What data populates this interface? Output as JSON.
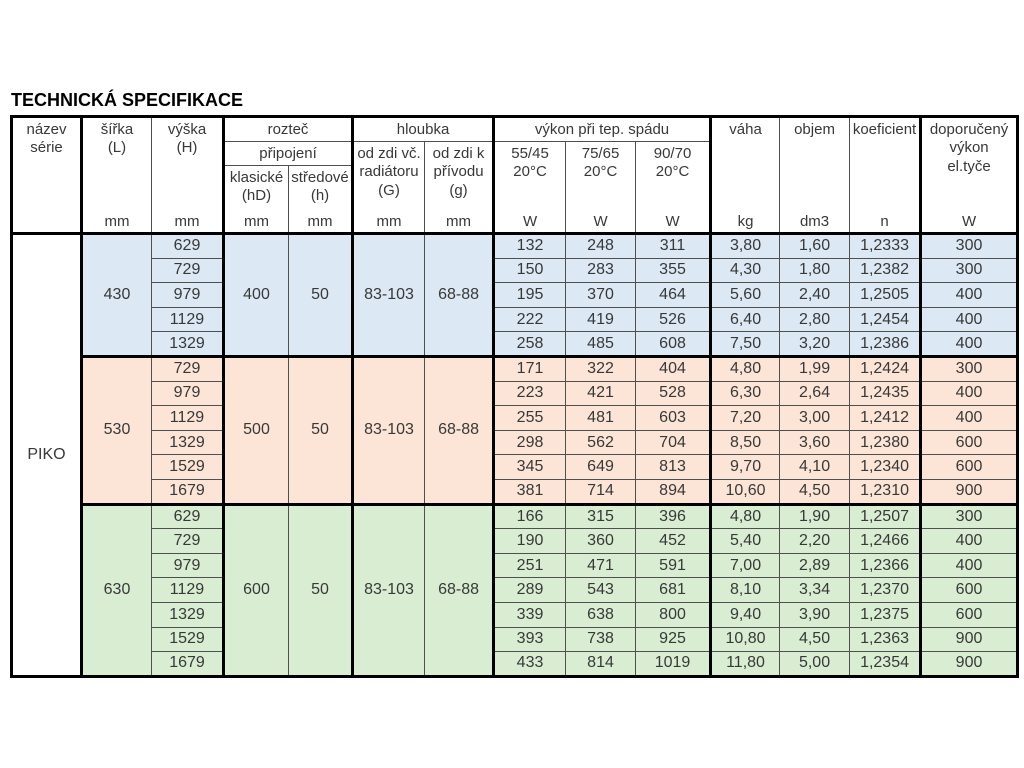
{
  "title": "TECHNICKÁ SPECIFIKACE",
  "series_name": "PIKO",
  "header": {
    "nazev_serie": "název\nsérie",
    "sirka": "šířka\n(L)",
    "vyska": "výška\n(H)",
    "roztec": "rozteč",
    "pripojeni": "připojení",
    "klasicke": "klasické\n(hD)",
    "stredove": "středové\n(h)",
    "hloubka": "hloubka",
    "od_zdi_vc": "od zdi vč.\nradiátoru\n(G)",
    "od_zdi_k": "od zdi k\npřívodu\n(g)",
    "vykon": "výkon při tep. spádu",
    "spad_55": "55/45\n20°C",
    "spad_75": "75/65\n20°C",
    "spad_90": "90/70\n20°C",
    "vaha": "váha",
    "objem": "objem",
    "koeficient": "koeficient",
    "doporuceny": "doporučený\nvýkon\nel.tyče",
    "units": {
      "mm": "mm",
      "W": "W",
      "kg": "kg",
      "dm3": "dm3",
      "n": "n"
    }
  },
  "groups": [
    {
      "color": "#dce8f4",
      "width": "430",
      "klasicke": "400",
      "stredove": "50",
      "depth_g": "83-103",
      "depth_g_small": "68-88",
      "rows": [
        {
          "h": "629",
          "p55": "132",
          "p75": "248",
          "p90": "311",
          "kg": "3,80",
          "dm3": "1,60",
          "n": "1,2333",
          "el": "300"
        },
        {
          "h": "729",
          "p55": "150",
          "p75": "283",
          "p90": "355",
          "kg": "4,30",
          "dm3": "1,80",
          "n": "1,2382",
          "el": "300"
        },
        {
          "h": "979",
          "p55": "195",
          "p75": "370",
          "p90": "464",
          "kg": "5,60",
          "dm3": "2,40",
          "n": "1,2505",
          "el": "400"
        },
        {
          "h": "1129",
          "p55": "222",
          "p75": "419",
          "p90": "526",
          "kg": "6,40",
          "dm3": "2,80",
          "n": "1,2454",
          "el": "400"
        },
        {
          "h": "1329",
          "p55": "258",
          "p75": "485",
          "p90": "608",
          "kg": "7,50",
          "dm3": "3,20",
          "n": "1,2386",
          "el": "400"
        }
      ]
    },
    {
      "color": "#fce5d7",
      "width": "530",
      "klasicke": "500",
      "stredove": "50",
      "depth_g": "83-103",
      "depth_g_small": "68-88",
      "rows": [
        {
          "h": "729",
          "p55": "171",
          "p75": "322",
          "p90": "404",
          "kg": "4,80",
          "dm3": "1,99",
          "n": "1,2424",
          "el": "300"
        },
        {
          "h": "979",
          "p55": "223",
          "p75": "421",
          "p90": "528",
          "kg": "6,30",
          "dm3": "2,64",
          "n": "1,2435",
          "el": "400"
        },
        {
          "h": "1129",
          "p55": "255",
          "p75": "481",
          "p90": "603",
          "kg": "7,20",
          "dm3": "3,00",
          "n": "1,2412",
          "el": "400"
        },
        {
          "h": "1329",
          "p55": "298",
          "p75": "562",
          "p90": "704",
          "kg": "8,50",
          "dm3": "3,60",
          "n": "1,2380",
          "el": "600"
        },
        {
          "h": "1529",
          "p55": "345",
          "p75": "649",
          "p90": "813",
          "kg": "9,70",
          "dm3": "4,10",
          "n": "1,2340",
          "el": "600"
        },
        {
          "h": "1679",
          "p55": "381",
          "p75": "714",
          "p90": "894",
          "kg": "10,60",
          "dm3": "4,50",
          "n": "1,2310",
          "el": "900"
        }
      ]
    },
    {
      "color": "#d9edd3",
      "width": "630",
      "klasicke": "600",
      "stredove": "50",
      "depth_g": "83-103",
      "depth_g_small": "68-88",
      "rows": [
        {
          "h": "629",
          "p55": "166",
          "p75": "315",
          "p90": "396",
          "kg": "4,80",
          "dm3": "1,90",
          "n": "1,2507",
          "el": "300"
        },
        {
          "h": "729",
          "p55": "190",
          "p75": "360",
          "p90": "452",
          "kg": "5,40",
          "dm3": "2,20",
          "n": "1,2466",
          "el": "400"
        },
        {
          "h": "979",
          "p55": "251",
          "p75": "471",
          "p90": "591",
          "kg": "7,00",
          "dm3": "2,89",
          "n": "1,2366",
          "el": "400"
        },
        {
          "h": "1129",
          "p55": "289",
          "p75": "543",
          "p90": "681",
          "kg": "8,10",
          "dm3": "3,34",
          "n": "1,2370",
          "el": "600"
        },
        {
          "h": "1329",
          "p55": "339",
          "p75": "638",
          "p90": "800",
          "kg": "9,40",
          "dm3": "3,90",
          "n": "1,2375",
          "el": "600"
        },
        {
          "h": "1529",
          "p55": "393",
          "p75": "738",
          "p90": "925",
          "kg": "10,80",
          "dm3": "4,50",
          "n": "1,2363",
          "el": "900"
        },
        {
          "h": "1679",
          "p55": "433",
          "p75": "814",
          "p90": "1019",
          "kg": "11,80",
          "dm3": "5,00",
          "n": "1,2354",
          "el": "900"
        }
      ]
    }
  ]
}
